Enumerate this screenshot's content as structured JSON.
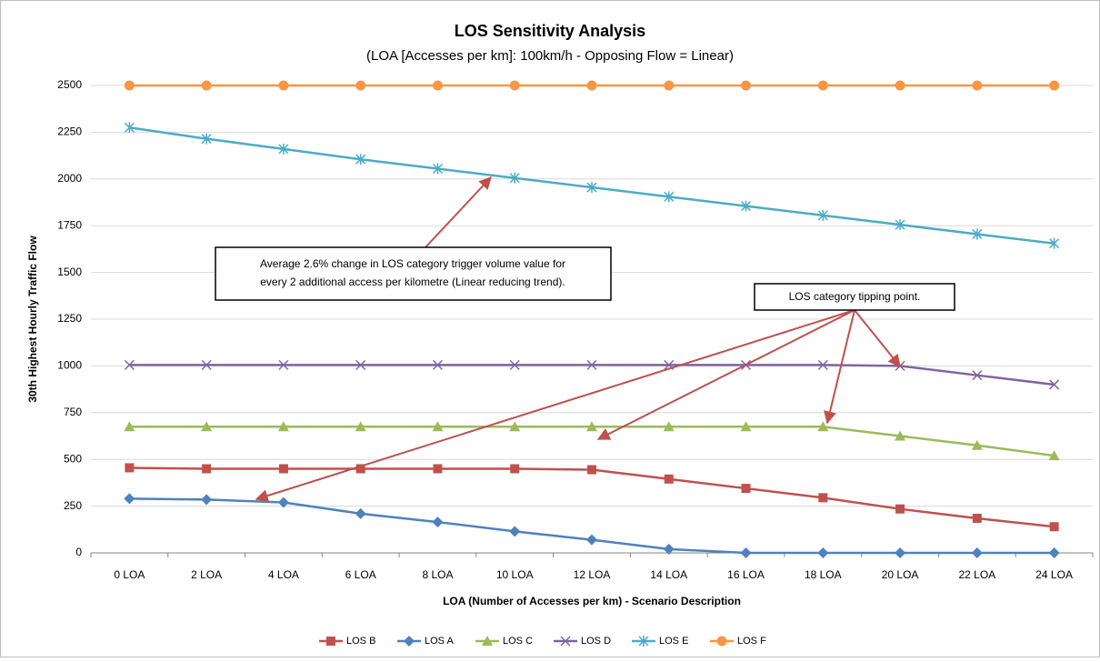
{
  "chart_data": {
    "type": "line",
    "title": "LOS Sensitivity Analysis",
    "subtitle": "(LOA [Accesses per km]: 100km/h - Opposing Flow = Linear)",
    "x_label": "LOA (Number of Accesses per km) - Scenario Description",
    "y_label": "30th Highest Hourly Traffic Flow",
    "categories": [
      "0 LOA",
      "2 LOA",
      "4 LOA",
      "6 LOA",
      "8 LOA",
      "10 LOA",
      "12 LOA",
      "14 LOA",
      "16 LOA",
      "18 LOA",
      "20 LOA",
      "22 LOA",
      "24 LOA"
    ],
    "ylim": [
      0,
      2500
    ],
    "yticks": [
      0,
      250,
      500,
      750,
      1000,
      1250,
      1500,
      1750,
      2000,
      2250,
      2500
    ],
    "grid": true,
    "legend": "bottom",
    "series": [
      {
        "name": "LOS B",
        "color": "#c0504d",
        "marker": "square",
        "values": [
          455,
          450,
          450,
          450,
          450,
          450,
          445,
          395,
          345,
          295,
          235,
          185,
          140
        ]
      },
      {
        "name": "LOS A",
        "color": "#4f81bd",
        "marker": "diamond",
        "values": [
          290,
          285,
          270,
          210,
          165,
          115,
          70,
          20,
          0,
          0,
          0,
          0,
          0
        ]
      },
      {
        "name": "LOS C",
        "color": "#9bbb59",
        "marker": "triangle",
        "values": [
          675,
          675,
          675,
          675,
          675,
          675,
          675,
          675,
          675,
          675,
          625,
          575,
          520
        ]
      },
      {
        "name": "LOS D",
        "color": "#8064a2",
        "marker": "x",
        "values": [
          1005,
          1005,
          1005,
          1005,
          1005,
          1005,
          1005,
          1005,
          1005,
          1005,
          1000,
          950,
          900
        ]
      },
      {
        "name": "LOS E",
        "color": "#4bacc6",
        "marker": "star",
        "values": [
          2275,
          2215,
          2160,
          2105,
          2055,
          2005,
          1955,
          1905,
          1855,
          1805,
          1755,
          1705,
          1655
        ]
      },
      {
        "name": "LOS F",
        "color": "#f79646",
        "marker": "circle",
        "values": [
          2500,
          2500,
          2500,
          2500,
          2500,
          2500,
          2500,
          2500,
          2500,
          2500,
          2500,
          2500,
          2500
        ]
      }
    ],
    "annotations": [
      {
        "lines": [
          "Average 2.6% change in LOS category trigger volume value for",
          "every 2 additional access per kilometre (Linear reducing trend)."
        ]
      },
      {
        "lines": [
          "LOS category tipping point."
        ]
      }
    ]
  }
}
